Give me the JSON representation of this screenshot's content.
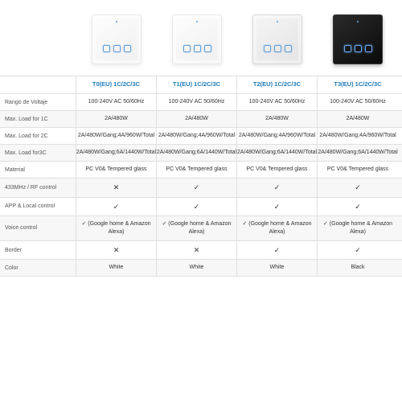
{
  "products": [
    {
      "header": "T0(EU) 1C/2C/3C",
      "variant": "white"
    },
    {
      "header": "T1(EU) 1C/2C/3C",
      "variant": "white"
    },
    {
      "header": "T2(EU) 1C/2C/3C",
      "variant": "silver"
    },
    {
      "header": "T3(EU) 1C/2C/3C",
      "variant": "black"
    }
  ],
  "rows": [
    {
      "label": "Rango de Voltaje",
      "shaded": false,
      "cells": [
        "100-240V AC 50/60Hz",
        "100-240V AC 50/60Hz",
        "100-240V AC 50/60Hz",
        "100-240V AC 50/60Hz"
      ]
    },
    {
      "label": "Max. Load for 1C",
      "shaded": true,
      "cells": [
        "2A/480W",
        "2A/480W",
        "2A/480W",
        "2A/480W"
      ]
    },
    {
      "label": "Max. Load for 2C",
      "shaded": false,
      "cells": [
        "2A/480W/Gang;\n4A/960W/Total",
        "2A/480W/Gang;\n4A/960W/Total",
        "2A/480W/Gang;\n4A/960W/Total",
        "2A/480W/Gang;\n4A/960W/Total"
      ]
    },
    {
      "label": "Max. Load for3C",
      "shaded": true,
      "cells": [
        "2A/480W/Gang;\n6A/1440W/Total",
        "2A/480W/Gang;\n6A/1440W/Total",
        "2A/480W/Gang;\n6A/1440W/Total",
        "2A/480W/Gang;\n6A/1440W/Total"
      ]
    },
    {
      "label": "Material",
      "shaded": false,
      "cells": [
        "PC V0& Tempered glass",
        "PC V0& Tempered glass",
        "PC V0& Tempered glass",
        "PC V0& Tempered glass"
      ]
    },
    {
      "label": "433MHz / RF control",
      "shaded": true,
      "cells": [
        "✕",
        "✓",
        "✓",
        "✓"
      ]
    },
    {
      "label": "APP & Local control",
      "shaded": false,
      "cells": [
        "✓",
        "✓",
        "✓",
        "✓"
      ]
    },
    {
      "label": "Voice control",
      "shaded": true,
      "cells": [
        "✓ (Google home & Amazon Alexa)",
        "✓ (Google home & Amazon Alexa)",
        "✓ (Google home & Amazon Alexa)",
        "✓ (Google home & Amazon Alexa)"
      ]
    },
    {
      "label": "Border",
      "shaded": false,
      "cells": [
        "✕",
        "✕",
        "✓",
        "✓"
      ]
    },
    {
      "label": "Color",
      "shaded": true,
      "cells": [
        "White",
        "White",
        "White",
        "Black"
      ]
    }
  ],
  "colors": {
    "header_text": "#1e7bb8",
    "border": "#e0e0e0",
    "shaded_bg": "#f7f7f7",
    "text": "#333333",
    "label_text": "#555555"
  }
}
